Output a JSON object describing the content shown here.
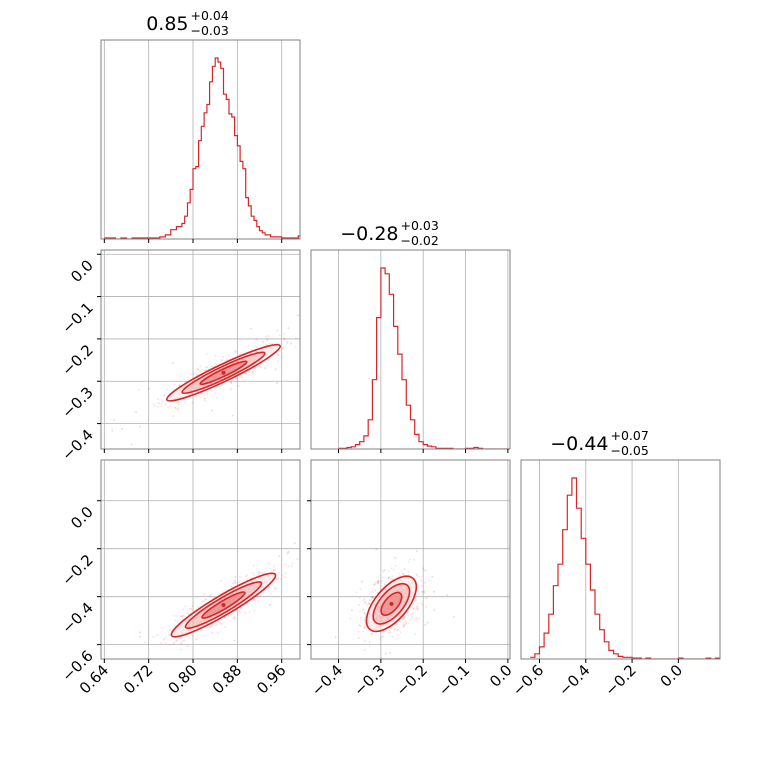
{
  "style": {
    "color": "#d62728",
    "grid": true
  },
  "chart_data": {
    "type": "corner",
    "parameters": [
      {
        "title": {
          "median": "0.85",
          "plus": "+0.04",
          "minus": "−0.03"
        },
        "range": [
          0.634,
          0.993
        ],
        "ticks": [
          0.64,
          0.72,
          0.8,
          0.88,
          0.96
        ],
        "tick_labels": [
          "0.64",
          "0.72",
          "0.80",
          "0.88",
          "0.96"
        ],
        "hist": {
          "type": "step",
          "x": [
            0.64,
            0.65,
            0.66,
            0.67,
            0.68,
            0.69,
            0.7,
            0.71,
            0.72,
            0.73,
            0.74,
            0.75,
            0.76,
            0.77,
            0.78,
            0.785,
            0.79,
            0.795,
            0.8,
            0.805,
            0.81,
            0.815,
            0.82,
            0.825,
            0.83,
            0.835,
            0.84,
            0.845,
            0.85,
            0.855,
            0.86,
            0.865,
            0.87,
            0.875,
            0.88,
            0.885,
            0.89,
            0.895,
            0.9,
            0.905,
            0.91,
            0.915,
            0.92,
            0.925,
            0.93,
            0.94,
            0.95,
            0.96,
            0.97,
            0.98,
            0.99
          ],
          "density": [
            1,
            1,
            0,
            1,
            0,
            1,
            1,
            1,
            1,
            1,
            2,
            4,
            9,
            12,
            15,
            22,
            35,
            48,
            68,
            70,
            95,
            109,
            122,
            130,
            152,
            167,
            175,
            171,
            165,
            140,
            135,
            121,
            118,
            100,
            90,
            75,
            68,
            40,
            32,
            22,
            18,
            12,
            8,
            6,
            4,
            2,
            2,
            1,
            1,
            1,
            3
          ]
        }
      },
      {
        "title": {
          "median": "−0.28",
          "plus": "+0.03",
          "minus": "−0.02"
        },
        "range": [
          -0.465,
          0.005
        ],
        "ticks": [
          -0.4,
          -0.3,
          -0.2,
          -0.1,
          0.0
        ],
        "tick_labels": [
          "−0.4",
          "−0.3",
          "−0.2",
          "−0.1",
          "0.0"
        ],
        "row_ticks": [
          0.0,
          -0.1,
          -0.2,
          -0.3,
          -0.4
        ],
        "row_tick_labels": [
          "0.0",
          "−0.1",
          "−0.2",
          "−0.3",
          "−0.4"
        ],
        "row_range": [
          -0.46,
          0.01
        ],
        "hist": {
          "type": "step",
          "x": [
            -0.4,
            -0.39,
            -0.38,
            -0.37,
            -0.36,
            -0.35,
            -0.34,
            -0.33,
            -0.32,
            -0.31,
            -0.3,
            -0.29,
            -0.28,
            -0.27,
            -0.26,
            -0.25,
            -0.24,
            -0.23,
            -0.22,
            -0.21,
            -0.2,
            -0.19,
            -0.18,
            -0.17,
            -0.16,
            -0.15,
            -0.14,
            -0.13,
            -0.12,
            -0.11,
            -0.1,
            -0.09,
            -0.08,
            -0.07,
            -0.06
          ],
          "density": [
            1,
            1,
            2,
            3,
            6,
            10,
            18,
            40,
            95,
            180,
            248,
            240,
            212,
            168,
            130,
            95,
            60,
            40,
            20,
            10,
            6,
            4,
            3,
            1,
            1,
            1,
            1,
            0,
            0,
            0,
            1,
            1,
            2,
            1,
            0
          ]
        }
      },
      {
        "title": {
          "median": "−0.44",
          "plus": "+0.07",
          "minus": "−0.05"
        },
        "range": [
          -0.68,
          0.18
        ],
        "ticks": [
          -0.6,
          -0.4,
          -0.2,
          0.0
        ],
        "tick_labels": [
          "−0.6",
          "−0.4",
          "−0.2",
          "0.0"
        ],
        "row_ticks": [
          0.0,
          -0.2,
          -0.4,
          -0.6
        ],
        "row_tick_labels": [
          "0.0",
          "−0.2",
          "−0.4",
          "−0.6"
        ],
        "row_range": [
          -0.66,
          0.17
        ],
        "hist": {
          "type": "step",
          "x": [
            -0.64,
            -0.62,
            -0.6,
            -0.58,
            -0.56,
            -0.54,
            -0.52,
            -0.5,
            -0.48,
            -0.46,
            -0.44,
            -0.42,
            -0.4,
            -0.38,
            -0.36,
            -0.34,
            -0.32,
            -0.3,
            -0.28,
            -0.26,
            -0.24,
            -0.22,
            -0.2,
            -0.18,
            -0.16,
            -0.14,
            -0.12,
            -0.1,
            -0.08,
            -0.06,
            -0.04,
            -0.02,
            0.0,
            0.02,
            0.04,
            0.06,
            0.08,
            0.1,
            0.12,
            0.14,
            0.16
          ],
          "density": [
            2,
            6,
            14,
            30,
            52,
            85,
            110,
            150,
            190,
            210,
            175,
            140,
            110,
            80,
            52,
            34,
            20,
            10,
            6,
            3,
            2,
            2,
            1,
            1,
            0,
            1,
            0,
            0,
            0,
            0,
            0,
            0,
            1,
            0,
            0,
            0,
            0,
            0,
            1,
            0,
            1
          ]
        }
      }
    ],
    "pairs": [
      {
        "row": 1,
        "col": 0,
        "center": [
          0.855,
          -0.28
        ],
        "major": [
          0.975,
          -0.205
        ],
        "minor_halfwidth": 0.012,
        "levels": [
          0.85,
          0.62,
          0.35
        ]
      },
      {
        "row": 2,
        "col": 0,
        "center": [
          0.855,
          -0.435
        ],
        "major": [
          0.965,
          -0.285
        ],
        "minor_halfwidth": 0.014,
        "levels": [
          0.85,
          0.62,
          0.35
        ]
      },
      {
        "row": 2,
        "col": 1,
        "center": [
          -0.275,
          -0.43
        ],
        "major": [
          -0.215,
          -0.305
        ],
        "minor_halfwidth": 0.03,
        "levels": [
          0.85,
          0.62,
          0.35
        ]
      }
    ]
  }
}
